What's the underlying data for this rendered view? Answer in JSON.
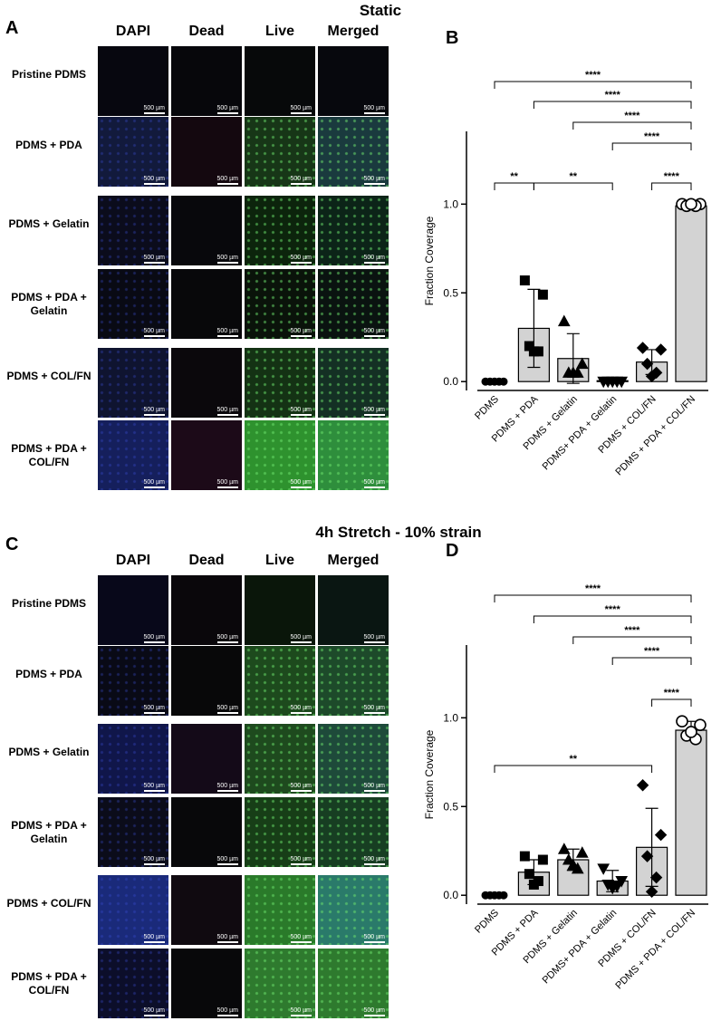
{
  "static": {
    "title": "Static",
    "panel": "A",
    "columns": [
      "DAPI",
      "Dead",
      "Live",
      "Merged"
    ],
    "rows": [
      "Pristine PDMS",
      "PDMS + PDA",
      "PDMS + Gelatin",
      "PDMS + PDA + Gelatin",
      "PDMS + COL/FN",
      "PDMS + PDA + COL/FN"
    ],
    "scale_bar": "500 µm"
  },
  "stretch": {
    "title": "4h Stretch - 10% strain",
    "panel": "C",
    "columns": [
      "DAPI",
      "Dead",
      "Live",
      "Merged"
    ],
    "rows": [
      "Pristine PDMS",
      "PDMS + PDA",
      "PDMS + Gelatin",
      "PDMS + PDA + Gelatin",
      "PDMS + COL/FN",
      "PDMS + PDA + COL/FN"
    ],
    "scale_bar": "500 µm"
  },
  "chart_data": [
    {
      "type": "bar",
      "panel": "B",
      "y_label": "Fraction Coverage",
      "color": "#d3d3d3",
      "categories": [
        "PDMS",
        "PDMS + PDA",
        "PDMS + Gelatin",
        "PDMS+ PDA + Gelatin",
        "PDMS + COL/FN",
        "PDMS + PDA + COL/FN"
      ],
      "values": [
        0,
        0.3,
        0.13,
        0.005,
        0.11,
        0.99
      ],
      "errors": [
        0,
        0.22,
        0.14,
        0.005,
        0.07,
        0.01
      ],
      "points": [
        [
          0,
          0,
          0,
          0,
          0
        ],
        [
          0.57,
          0.49,
          0.2,
          0.17,
          0.17
        ],
        [
          0.34,
          0.1,
          0.05,
          0.05,
          0.05
        ],
        [
          0,
          0,
          0,
          0,
          0
        ],
        [
          0.19,
          0.18,
          0.1,
          0.05,
          0.03
        ],
        [
          1,
          1,
          0.99,
          0.99,
          1
        ]
      ],
      "markers": [
        "circle",
        "square",
        "triangle",
        "triangle-down",
        "diamond",
        "circle-open"
      ],
      "ylim": [
        -0.05,
        1.41
      ],
      "yticks": [
        {
          "value": 0,
          "label": "0.0"
        },
        {
          "value": 0.5,
          "label": "0.5"
        },
        {
          "value": 1,
          "label": "1.0"
        }
      ],
      "comparisons": [
        [
          {
            "from": 0,
            "to": 5,
            "label": "****"
          }
        ],
        [
          {
            "from": 1,
            "to": 5,
            "label": "****"
          }
        ],
        [
          {
            "from": 2,
            "to": 5,
            "label": "****"
          }
        ],
        [
          {
            "from": 3,
            "to": 5,
            "label": "****"
          }
        ],
        [
          {
            "from": 0,
            "to": 1,
            "label": "**"
          },
          {
            "from": 1,
            "to": 3,
            "label": "**"
          },
          {
            "from": 4,
            "to": 5,
            "label": "****"
          }
        ]
      ]
    },
    {
      "type": "bar",
      "panel": "D",
      "y_label": "Fraction Coverage",
      "color": "#d3d3d3",
      "categories": [
        "PDMS",
        "PDMS + PDA",
        "PDMS + Gelatin",
        "PDMS+ PDA + Gelatin",
        "PDMS + COL/FN",
        "PDMS + PDA + COL/FN"
      ],
      "values": [
        0,
        0.13,
        0.2,
        0.08,
        0.27,
        0.93
      ],
      "errors": [
        0,
        0.07,
        0.06,
        0.06,
        0.22,
        0.05
      ],
      "points": [
        [
          0,
          0,
          0,
          0,
          0
        ],
        [
          0.22,
          0.2,
          0.12,
          0.08,
          0.06
        ],
        [
          0.26,
          0.24,
          0.2,
          0.15,
          0.17
        ],
        [
          0.15,
          0.08,
          0.06,
          0.05,
          0.04
        ],
        [
          0.62,
          0.34,
          0.22,
          0.1,
          0.02
        ],
        [
          0.98,
          0.96,
          0.9,
          0.88,
          0.92
        ]
      ],
      "markers": [
        "circle",
        "square",
        "triangle",
        "triangle-down",
        "diamond",
        "circle-open"
      ],
      "ylim": [
        -0.05,
        1.41
      ],
      "yticks": [
        {
          "value": 0,
          "label": "0.0"
        },
        {
          "value": 0.5,
          "label": "0.5"
        },
        {
          "value": 1,
          "label": "1.0"
        }
      ],
      "comparisons": [
        [
          {
            "from": 0,
            "to": 5,
            "label": "****"
          }
        ],
        [
          {
            "from": 1,
            "to": 5,
            "label": "****"
          }
        ],
        [
          {
            "from": 2,
            "to": 5,
            "label": "****"
          }
        ],
        [
          {
            "from": 3,
            "to": 5,
            "label": "****"
          }
        ],
        [
          {
            "from": 4,
            "to": 5,
            "label": "****"
          }
        ],
        [
          {
            "from": 0,
            "to": 4,
            "label": "**"
          }
        ]
      ]
    }
  ]
}
